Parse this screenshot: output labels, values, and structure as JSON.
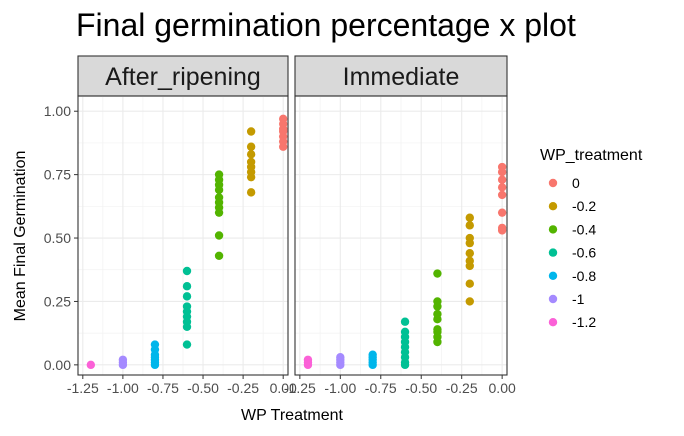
{
  "chart_data": {
    "type": "scatter",
    "title": "Final germination percentage x plot",
    "xlabel": "WP Treatment",
    "ylabel": "Mean Final Germination",
    "xlim": [
      -1.28,
      0.03
    ],
    "ylim": [
      -0.04,
      1.06
    ],
    "x_ticks": [
      "-1.25",
      "-1.00",
      "-0.75",
      "-0.50",
      "-0.25",
      "0.00"
    ],
    "y_ticks": [
      "0.00",
      "0.25",
      "0.50",
      "0.75",
      "1.00"
    ],
    "x_tick_values": [
      -1.25,
      -1.0,
      -0.75,
      -0.5,
      -0.25,
      0.0
    ],
    "y_tick_values": [
      0.0,
      0.25,
      0.5,
      0.75,
      1.0
    ],
    "grid": true,
    "legend_position": "right",
    "legend": {
      "title": "WP_treatment",
      "items": [
        {
          "label": "0",
          "color": "#F8766D"
        },
        {
          "label": "-0.2",
          "color": "#C49A00"
        },
        {
          "label": "-0.4",
          "color": "#53B400"
        },
        {
          "label": "-0.6",
          "color": "#00C094"
        },
        {
          "label": "-0.8",
          "color": "#00B6EB"
        },
        {
          "label": "-1",
          "color": "#A58AFF"
        },
        {
          "label": "-1.2",
          "color": "#FB61D7"
        }
      ]
    },
    "panels": [
      {
        "strip": "After_ripening",
        "series": [
          {
            "wp": "0",
            "x": 0.0,
            "y": [
              0.97,
              0.95,
              0.93,
              0.92,
              0.9,
              0.88,
              0.86
            ]
          },
          {
            "wp": "-0.2",
            "x": -0.2,
            "y": [
              0.92,
              0.86,
              0.83,
              0.8,
              0.78,
              0.76,
              0.74,
              0.68
            ]
          },
          {
            "wp": "-0.4",
            "x": -0.4,
            "y": [
              0.75,
              0.73,
              0.71,
              0.69,
              0.66,
              0.64,
              0.62,
              0.6,
              0.51,
              0.43
            ]
          },
          {
            "wp": "-0.6",
            "x": -0.6,
            "y": [
              0.37,
              0.31,
              0.27,
              0.23,
              0.21,
              0.19,
              0.17,
              0.15,
              0.08
            ]
          },
          {
            "wp": "-0.8",
            "x": -0.8,
            "y": [
              0.08,
              0.06,
              0.04,
              0.03,
              0.02,
              0.01,
              0.0
            ]
          },
          {
            "wp": "-1",
            "x": -1.0,
            "y": [
              0.02,
              0.01,
              0.0
            ]
          },
          {
            "wp": "-1.2",
            "x": -1.2,
            "y": [
              0.0
            ]
          }
        ]
      },
      {
        "strip": "Immediate",
        "series": [
          {
            "wp": "0",
            "x": 0.0,
            "y": [
              0.78,
              0.76,
              0.73,
              0.7,
              0.67,
              0.6,
              0.54,
              0.53
            ]
          },
          {
            "wp": "-0.2",
            "x": -0.2,
            "y": [
              0.58,
              0.55,
              0.5,
              0.48,
              0.44,
              0.41,
              0.39,
              0.32,
              0.25
            ]
          },
          {
            "wp": "-0.4",
            "x": -0.4,
            "y": [
              0.36,
              0.25,
              0.23,
              0.2,
              0.18,
              0.14,
              0.13,
              0.11,
              0.09
            ]
          },
          {
            "wp": "-0.6",
            "x": -0.6,
            "y": [
              0.17,
              0.13,
              0.11,
              0.09,
              0.07,
              0.05,
              0.03,
              0.01,
              0.0
            ]
          },
          {
            "wp": "-0.8",
            "x": -0.8,
            "y": [
              0.04,
              0.03,
              0.02,
              0.01,
              0.0
            ]
          },
          {
            "wp": "-1",
            "x": -1.0,
            "y": [
              0.03,
              0.02,
              0.01,
              0.0
            ]
          },
          {
            "wp": "-1.2",
            "x": -1.2,
            "y": [
              0.02,
              0.01,
              0.0
            ]
          }
        ]
      }
    ]
  }
}
